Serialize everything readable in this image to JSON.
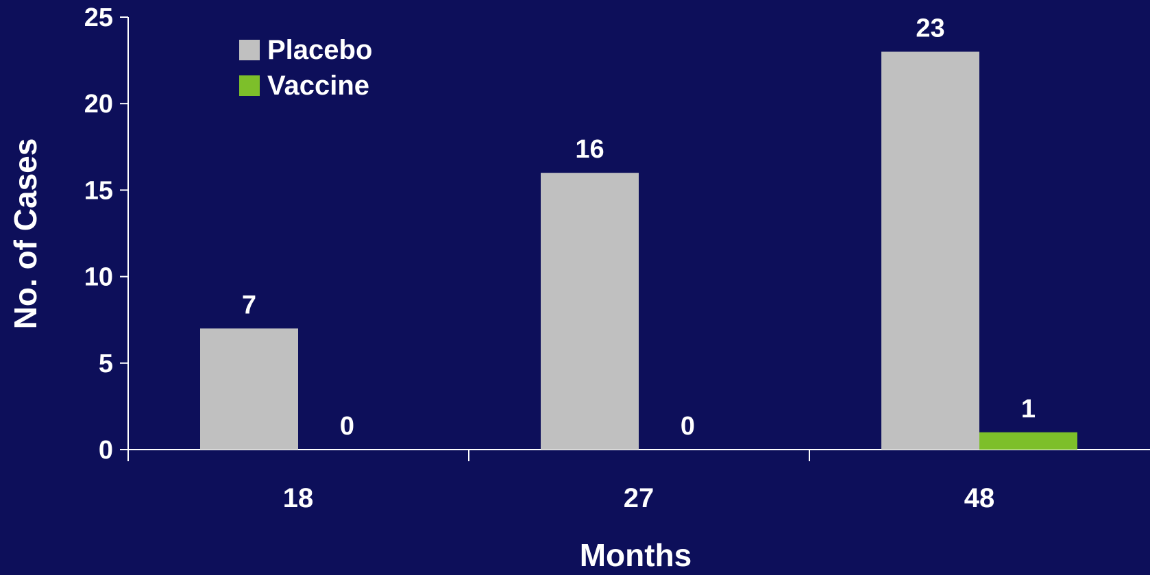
{
  "chart_data": {
    "type": "bar",
    "categories": [
      "18",
      "27",
      "48"
    ],
    "series": [
      {
        "name": "Placebo",
        "values": [
          7,
          16,
          23
        ],
        "color": "#c0c0c0"
      },
      {
        "name": "Vaccine",
        "values": [
          0,
          0,
          1
        ],
        "color": "#7dbf2a"
      }
    ],
    "data_labels": [
      [
        "7",
        "16",
        "23"
      ],
      [
        "0",
        "0",
        "1"
      ]
    ],
    "title": "",
    "xlabel": "Months",
    "ylabel": "No. of Cases",
    "ylim": [
      0,
      25
    ],
    "yticks": [
      0,
      5,
      10,
      15,
      20,
      25
    ],
    "grid": false,
    "legend_position": "top-left",
    "background_color": "#0d0f5a",
    "axis_color": "#ffffff",
    "text_color": "#ffffff"
  }
}
